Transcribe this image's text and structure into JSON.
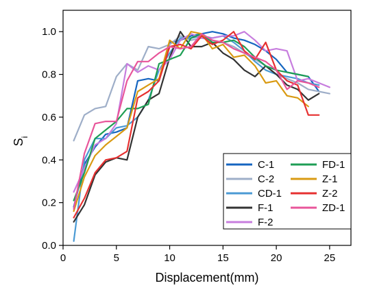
{
  "chart_data": {
    "type": "line",
    "title": "",
    "xlabel": "Displacement(mm)",
    "ylabel_main": "S",
    "ylabel_sub": "i",
    "xlim": [
      0,
      27
    ],
    "ylim": [
      0.0,
      1.1
    ],
    "xticks": [
      0,
      5,
      10,
      15,
      20,
      25
    ],
    "yticks": [
      0.0,
      0.2,
      0.4,
      0.6,
      0.8,
      1.0
    ],
    "xtick_labels": [
      "0",
      "5",
      "10",
      "15",
      "20",
      "25"
    ],
    "ytick_labels": [
      "0.0",
      "0.2",
      "0.4",
      "0.6",
      "0.8",
      "1.0"
    ],
    "grid": false,
    "legend": {
      "placement": "bottom-right",
      "columns": 2
    },
    "x": [
      1,
      2,
      3,
      4,
      5,
      6,
      7,
      8,
      9,
      10,
      11,
      12,
      13,
      14,
      15,
      16,
      17,
      18,
      19,
      20,
      21,
      22,
      23,
      24,
      25
    ],
    "series": [
      {
        "name": "C-1",
        "color": "#1565C0",
        "values": [
          0.18,
          0.38,
          0.46,
          0.52,
          0.53,
          0.55,
          0.77,
          0.78,
          0.77,
          0.95,
          0.96,
          0.98,
          0.99,
          1.0,
          0.99,
          0.97,
          0.96,
          0.94,
          0.91,
          0.87,
          0.81,
          0.8,
          0.79,
          0.72,
          null
        ]
      },
      {
        "name": "C-2",
        "color": "#9EAEC8",
        "values": [
          0.49,
          0.61,
          0.64,
          0.65,
          0.79,
          0.85,
          0.82,
          0.93,
          0.92,
          0.94,
          0.98,
          0.96,
          0.97,
          0.96,
          0.95,
          0.93,
          0.9,
          0.87,
          0.84,
          0.8,
          0.78,
          0.76,
          0.73,
          0.72,
          0.71
        ]
      },
      {
        "name": "CD-1",
        "color": "#4A9AD4",
        "values": [
          0.02,
          0.4,
          0.5,
          0.5,
          0.55,
          0.56,
          0.6,
          0.68,
          0.82,
          0.9,
          0.97,
          0.97,
          0.98,
          0.97,
          0.98,
          0.95,
          0.91,
          0.86,
          0.82,
          0.8,
          0.79,
          0.78,
          0.76,
          0.75,
          null
        ]
      },
      {
        "name": "F-1",
        "color": "#333333",
        "values": [
          0.11,
          0.19,
          0.33,
          0.39,
          0.41,
          0.4,
          0.6,
          0.68,
          0.71,
          0.88,
          1.0,
          0.93,
          0.93,
          0.95,
          0.9,
          0.87,
          0.82,
          0.79,
          0.84,
          0.8,
          0.75,
          0.73,
          0.68,
          0.71,
          null
        ]
      },
      {
        "name": "F-2",
        "color": "#C77DDE",
        "values": [
          0.25,
          0.36,
          0.47,
          0.5,
          0.57,
          0.85,
          0.81,
          0.84,
          0.82,
          0.87,
          0.96,
          0.99,
          0.97,
          0.97,
          0.98,
          0.98,
          1.0,
          0.96,
          0.91,
          0.92,
          0.91,
          0.77,
          0.78,
          0.76,
          0.74
        ]
      },
      {
        "name": "FD-1",
        "color": "#1E9E54",
        "values": [
          0.21,
          0.34,
          0.5,
          0.54,
          0.58,
          0.64,
          0.64,
          0.66,
          0.85,
          0.87,
          0.89,
          0.97,
          0.99,
          0.95,
          0.95,
          0.96,
          0.93,
          0.88,
          0.84,
          0.82,
          0.81,
          0.8,
          0.79,
          null,
          null
        ]
      },
      {
        "name": "Z-1",
        "color": "#D99A12",
        "values": [
          0.16,
          0.32,
          0.42,
          0.47,
          0.51,
          0.55,
          0.72,
          0.75,
          0.78,
          0.96,
          0.92,
          1.0,
          0.99,
          0.92,
          0.94,
          0.88,
          0.89,
          0.84,
          0.76,
          0.77,
          0.7,
          0.69,
          0.65,
          null,
          null
        ]
      },
      {
        "name": "Z-2",
        "color": "#E63030",
        "values": [
          0.13,
          0.22,
          0.34,
          0.4,
          0.41,
          0.44,
          0.69,
          0.72,
          0.77,
          0.93,
          0.94,
          0.92,
          0.98,
          0.94,
          0.96,
          1.0,
          0.91,
          0.87,
          0.95,
          0.82,
          0.77,
          0.75,
          0.61,
          0.61,
          null
        ]
      },
      {
        "name": "ZD-1",
        "color": "#E8559A",
        "values": [
          0.17,
          0.43,
          0.57,
          0.58,
          0.58,
          0.77,
          0.86,
          0.86,
          0.9,
          0.93,
          0.92,
          0.93,
          0.99,
          0.96,
          0.95,
          0.92,
          0.9,
          0.88,
          0.86,
          0.82,
          0.73,
          0.77,
          0.76,
          0.74,
          null
        ]
      }
    ]
  }
}
